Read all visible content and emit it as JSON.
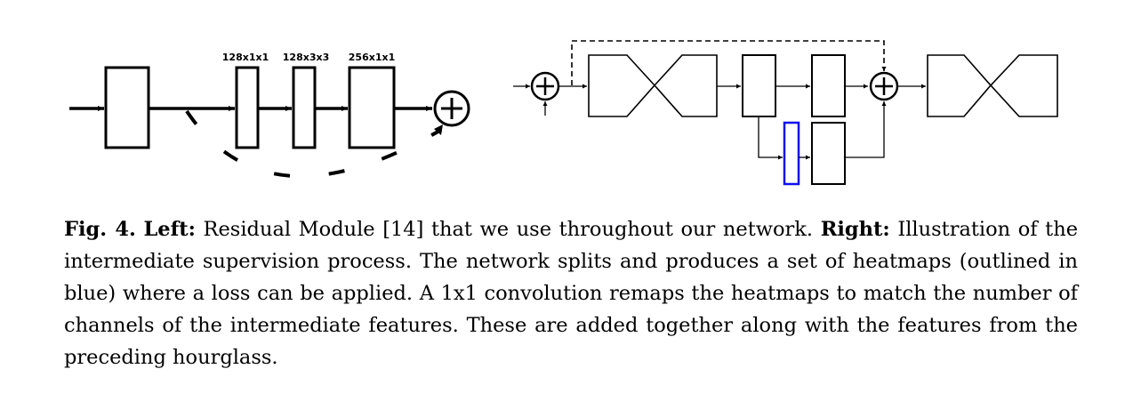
{
  "figure": {
    "left_diagram": {
      "layer_labels": [
        "128x1x1",
        "128x3x3",
        "256x1x1"
      ]
    },
    "right_diagram": {
      "heatmap_outline_color": "#1010ee"
    }
  },
  "caption": {
    "fig_label": "Fig. 4.",
    "left_label": "Left:",
    "left_text": "Residual Module [14] that we use throughout our network.",
    "right_label": "Right:",
    "right_text": "Illustration of the intermediate supervision process. The network splits and produces a set of heatmaps (outlined in blue) where a loss can be applied. A 1x1 convolution remaps the heatmaps to match the number of channels of the intermediate features. These are added together along with the features from the preceding hourglass."
  }
}
